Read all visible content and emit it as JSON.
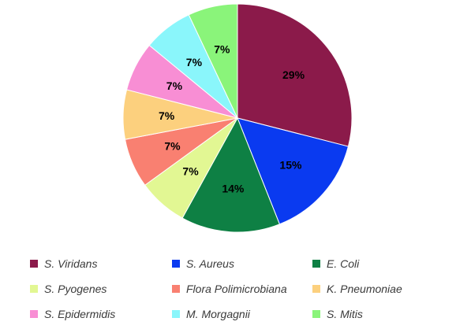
{
  "chart_data": {
    "type": "pie",
    "title": "",
    "start_angle_deg": 0,
    "direction": "clockwise",
    "legend_position": "bottom",
    "slices": [
      {
        "name": "S. Viridans",
        "value": 29,
        "label": "29%",
        "color": "#8B1A4A"
      },
      {
        "name": "S. Aureus",
        "value": 15,
        "label": "15%",
        "color": "#0A3AF0"
      },
      {
        "name": "E. Coli",
        "value": 14,
        "label": "14%",
        "color": "#0E8044"
      },
      {
        "name": "S. Pyogenes",
        "value": 7,
        "label": "7%",
        "color": "#E2F793"
      },
      {
        "name": "Flora Polimicrobiana",
        "value": 7,
        "label": "7%",
        "color": "#F98071"
      },
      {
        "name": "K. Pneumoniae",
        "value": 7,
        "label": "7%",
        "color": "#FCD07E"
      },
      {
        "name": "S. Epidermidis",
        "value": 7,
        "label": "7%",
        "color": "#F88ED4"
      },
      {
        "name": "M. Morgagnii",
        "value": 7,
        "label": "7%",
        "color": "#8AF6FB"
      },
      {
        "name": "S. Mitis",
        "value": 7,
        "label": "7%",
        "color": "#8AF47A"
      }
    ]
  }
}
